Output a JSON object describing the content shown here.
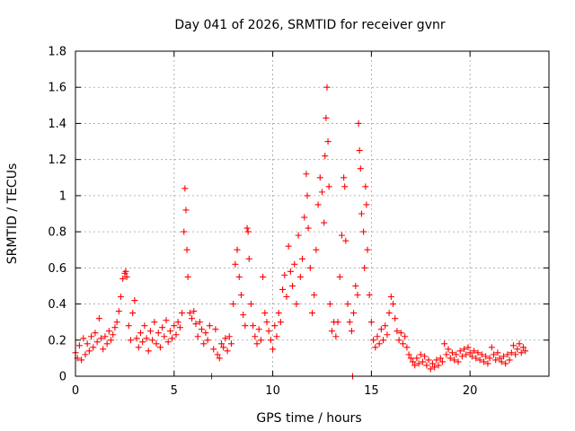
{
  "chart_data": {
    "type": "scatter",
    "title": "Day 041 of 2026, SRMTID for receiver gvnr",
    "xlabel": "GPS time / hours",
    "ylabel": "SRMTID / TECUs",
    "xlim": [
      0,
      24
    ],
    "ylim": [
      0,
      1.8
    ],
    "xticks": [
      0,
      5,
      10,
      15,
      20
    ],
    "xtick_labels": [
      "0",
      "5",
      "10",
      "15",
      "20"
    ],
    "yticks": [
      0,
      0.2,
      0.4,
      0.6,
      0.8,
      1.0,
      1.2,
      1.4,
      1.6,
      1.8
    ],
    "ytick_labels": [
      "0",
      "0.2",
      "0.4",
      "0.6",
      "0.8",
      "1",
      "1.2",
      "1.4",
      "1.6",
      "1.8"
    ],
    "grid": true,
    "marker": "plus",
    "color": "#ff0000",
    "series": [
      {
        "name": "gvnr",
        "points": [
          [
            0.0,
            0.13
          ],
          [
            0.1,
            0.1
          ],
          [
            0.2,
            0.17
          ],
          [
            0.3,
            0.09
          ],
          [
            0.4,
            0.21
          ],
          [
            0.5,
            0.12
          ],
          [
            0.6,
            0.18
          ],
          [
            0.7,
            0.14
          ],
          [
            0.8,
            0.22
          ],
          [
            0.9,
            0.16
          ],
          [
            1.0,
            0.24
          ],
          [
            1.1,
            0.19
          ],
          [
            1.2,
            0.32
          ],
          [
            1.3,
            0.21
          ],
          [
            1.4,
            0.15
          ],
          [
            1.5,
            0.22
          ],
          [
            1.6,
            0.18
          ],
          [
            1.7,
            0.25
          ],
          [
            1.8,
            0.2
          ],
          [
            1.9,
            0.23
          ],
          [
            2.0,
            0.27
          ],
          [
            2.1,
            0.3
          ],
          [
            2.2,
            0.36
          ],
          [
            2.3,
            0.44
          ],
          [
            2.4,
            0.54
          ],
          [
            2.5,
            0.57
          ],
          [
            2.55,
            0.58
          ],
          [
            2.6,
            0.55
          ],
          [
            2.7,
            0.28
          ],
          [
            2.8,
            0.2
          ],
          [
            2.9,
            0.35
          ],
          [
            3.0,
            0.42
          ],
          [
            3.1,
            0.21
          ],
          [
            3.2,
            0.16
          ],
          [
            3.3,
            0.24
          ],
          [
            3.4,
            0.19
          ],
          [
            3.5,
            0.28
          ],
          [
            3.6,
            0.21
          ],
          [
            3.7,
            0.14
          ],
          [
            3.8,
            0.25
          ],
          [
            3.9,
            0.2
          ],
          [
            4.0,
            0.3
          ],
          [
            4.1,
            0.18
          ],
          [
            4.2,
            0.24
          ],
          [
            4.3,
            0.16
          ],
          [
            4.4,
            0.27
          ],
          [
            4.5,
            0.22
          ],
          [
            4.6,
            0.31
          ],
          [
            4.7,
            0.19
          ],
          [
            4.8,
            0.25
          ],
          [
            4.9,
            0.21
          ],
          [
            5.0,
            0.28
          ],
          [
            5.1,
            0.23
          ],
          [
            5.2,
            0.3
          ],
          [
            5.3,
            0.27
          ],
          [
            5.4,
            0.35
          ],
          [
            5.5,
            0.8
          ],
          [
            5.55,
            1.04
          ],
          [
            5.6,
            0.92
          ],
          [
            5.65,
            0.7
          ],
          [
            5.7,
            0.55
          ],
          [
            5.8,
            0.35
          ],
          [
            5.9,
            0.32
          ],
          [
            6.0,
            0.36
          ],
          [
            6.1,
            0.29
          ],
          [
            6.2,
            0.22
          ],
          [
            6.3,
            0.3
          ],
          [
            6.4,
            0.26
          ],
          [
            6.5,
            0.18
          ],
          [
            6.6,
            0.24
          ],
          [
            6.7,
            0.2
          ],
          [
            6.8,
            0.28
          ],
          [
            6.9,
            0.0
          ],
          [
            7.0,
            0.15
          ],
          [
            7.1,
            0.26
          ],
          [
            7.2,
            0.12
          ],
          [
            7.3,
            0.1
          ],
          [
            7.4,
            0.18
          ],
          [
            7.5,
            0.16
          ],
          [
            7.6,
            0.21
          ],
          [
            7.7,
            0.14
          ],
          [
            7.8,
            0.22
          ],
          [
            7.9,
            0.18
          ],
          [
            8.0,
            0.4
          ],
          [
            8.1,
            0.62
          ],
          [
            8.2,
            0.7
          ],
          [
            8.3,
            0.55
          ],
          [
            8.4,
            0.45
          ],
          [
            8.5,
            0.34
          ],
          [
            8.6,
            0.28
          ],
          [
            8.7,
            0.82
          ],
          [
            8.75,
            0.8
          ],
          [
            8.8,
            0.65
          ],
          [
            8.9,
            0.4
          ],
          [
            9.0,
            0.28
          ],
          [
            9.1,
            0.22
          ],
          [
            9.2,
            0.18
          ],
          [
            9.3,
            0.26
          ],
          [
            9.4,
            0.2
          ],
          [
            9.5,
            0.55
          ],
          [
            9.6,
            0.35
          ],
          [
            9.7,
            0.3
          ],
          [
            9.8,
            0.25
          ],
          [
            9.9,
            0.2
          ],
          [
            10.0,
            0.15
          ],
          [
            10.1,
            0.28
          ],
          [
            10.2,
            0.22
          ],
          [
            10.3,
            0.35
          ],
          [
            10.4,
            0.3
          ],
          [
            10.5,
            0.48
          ],
          [
            10.6,
            0.56
          ],
          [
            10.7,
            0.44
          ],
          [
            10.8,
            0.72
          ],
          [
            10.9,
            0.58
          ],
          [
            11.0,
            0.5
          ],
          [
            11.1,
            0.62
          ],
          [
            11.2,
            0.4
          ],
          [
            11.3,
            0.78
          ],
          [
            11.4,
            0.55
          ],
          [
            11.5,
            0.65
          ],
          [
            11.6,
            0.88
          ],
          [
            11.7,
            1.12
          ],
          [
            11.75,
            1.0
          ],
          [
            11.8,
            0.82
          ],
          [
            11.9,
            0.6
          ],
          [
            12.0,
            0.35
          ],
          [
            12.1,
            0.45
          ],
          [
            12.2,
            0.7
          ],
          [
            12.3,
            0.95
          ],
          [
            12.4,
            1.1
          ],
          [
            12.5,
            1.02
          ],
          [
            12.6,
            0.85
          ],
          [
            12.65,
            1.22
          ],
          [
            12.7,
            1.43
          ],
          [
            12.75,
            1.6
          ],
          [
            12.8,
            1.3
          ],
          [
            12.85,
            1.05
          ],
          [
            12.9,
            0.4
          ],
          [
            13.0,
            0.25
          ],
          [
            13.1,
            0.3
          ],
          [
            13.2,
            0.22
          ],
          [
            13.3,
            0.3
          ],
          [
            13.4,
            0.55
          ],
          [
            13.5,
            0.78
          ],
          [
            13.6,
            1.1
          ],
          [
            13.65,
            1.05
          ],
          [
            13.7,
            0.75
          ],
          [
            13.8,
            0.4
          ],
          [
            13.9,
            0.3
          ],
          [
            14.0,
            0.25
          ],
          [
            14.05,
            0.0
          ],
          [
            14.1,
            0.35
          ],
          [
            14.2,
            0.5
          ],
          [
            14.3,
            0.45
          ],
          [
            14.35,
            1.4
          ],
          [
            14.4,
            1.25
          ],
          [
            14.45,
            1.15
          ],
          [
            14.5,
            0.9
          ],
          [
            14.6,
            0.8
          ],
          [
            14.65,
            0.6
          ],
          [
            14.7,
            1.05
          ],
          [
            14.75,
            0.95
          ],
          [
            14.8,
            0.7
          ],
          [
            14.9,
            0.45
          ],
          [
            15.0,
            0.3
          ],
          [
            15.1,
            0.2
          ],
          [
            15.2,
            0.16
          ],
          [
            15.3,
            0.22
          ],
          [
            15.4,
            0.18
          ],
          [
            15.5,
            0.26
          ],
          [
            15.6,
            0.2
          ],
          [
            15.7,
            0.28
          ],
          [
            15.8,
            0.23
          ],
          [
            15.9,
            0.35
          ],
          [
            16.0,
            0.44
          ],
          [
            16.1,
            0.4
          ],
          [
            16.2,
            0.32
          ],
          [
            16.3,
            0.25
          ],
          [
            16.4,
            0.2
          ],
          [
            16.5,
            0.24
          ],
          [
            16.6,
            0.18
          ],
          [
            16.7,
            0.22
          ],
          [
            16.8,
            0.16
          ],
          [
            16.9,
            0.12
          ],
          [
            17.0,
            0.1
          ],
          [
            17.1,
            0.08
          ],
          [
            17.2,
            0.06
          ],
          [
            17.3,
            0.1
          ],
          [
            17.4,
            0.07
          ],
          [
            17.5,
            0.12
          ],
          [
            17.6,
            0.08
          ],
          [
            17.7,
            0.11
          ],
          [
            17.8,
            0.06
          ],
          [
            17.9,
            0.09
          ],
          [
            18.0,
            0.04
          ],
          [
            18.1,
            0.07
          ],
          [
            18.2,
            0.05
          ],
          [
            18.3,
            0.09
          ],
          [
            18.4,
            0.06
          ],
          [
            18.5,
            0.1
          ],
          [
            18.6,
            0.08
          ],
          [
            18.7,
            0.18
          ],
          [
            18.8,
            0.12
          ],
          [
            18.9,
            0.15
          ],
          [
            19.0,
            0.1
          ],
          [
            19.1,
            0.13
          ],
          [
            19.2,
            0.09
          ],
          [
            19.3,
            0.12
          ],
          [
            19.4,
            0.08
          ],
          [
            19.5,
            0.14
          ],
          [
            19.6,
            0.11
          ],
          [
            19.7,
            0.15
          ],
          [
            19.8,
            0.12
          ],
          [
            19.9,
            0.16
          ],
          [
            20.0,
            0.13
          ],
          [
            20.1,
            0.11
          ],
          [
            20.2,
            0.14
          ],
          [
            20.3,
            0.1
          ],
          [
            20.4,
            0.13
          ],
          [
            20.5,
            0.09
          ],
          [
            20.6,
            0.12
          ],
          [
            20.7,
            0.08
          ],
          [
            20.8,
            0.11
          ],
          [
            20.9,
            0.07
          ],
          [
            21.0,
            0.1
          ],
          [
            21.1,
            0.16
          ],
          [
            21.2,
            0.12
          ],
          [
            21.3,
            0.09
          ],
          [
            21.4,
            0.13
          ],
          [
            21.5,
            0.1
          ],
          [
            21.6,
            0.08
          ],
          [
            21.7,
            0.11
          ],
          [
            21.8,
            0.07
          ],
          [
            21.9,
            0.12
          ],
          [
            22.0,
            0.09
          ],
          [
            22.1,
            0.13
          ],
          [
            22.2,
            0.17
          ],
          [
            22.3,
            0.12
          ],
          [
            22.4,
            0.15
          ],
          [
            22.5,
            0.18
          ],
          [
            22.6,
            0.13
          ],
          [
            22.7,
            0.16
          ],
          [
            22.8,
            0.14
          ]
        ]
      }
    ]
  }
}
